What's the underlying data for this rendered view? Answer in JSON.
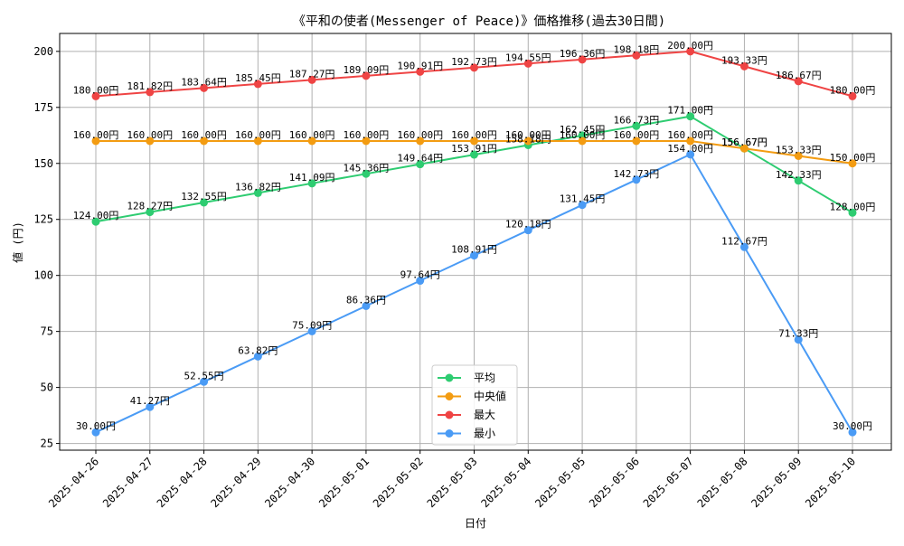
{
  "chart_data": {
    "type": "line",
    "title": "《平和の使者(Messenger of Peace)》価格推移(過去30日間)",
    "xlabel": "日付",
    "ylabel": "値 (円)",
    "ylim": [
      22,
      208
    ],
    "yticks": [
      25,
      50,
      75,
      100,
      125,
      150,
      175,
      200
    ],
    "grid": true,
    "legend_position": "bottom-center",
    "value_suffix": "円",
    "categories": [
      "2025-04-26",
      "2025-04-27",
      "2025-04-28",
      "2025-04-29",
      "2025-04-30",
      "2025-05-01",
      "2025-05-02",
      "2025-05-03",
      "2025-05-04",
      "2025-05-05",
      "2025-05-06",
      "2025-05-07",
      "2025-05-08",
      "2025-05-09",
      "2025-05-10"
    ],
    "series": [
      {
        "name": "平均",
        "color": "#2ecc71",
        "values": [
          124.0,
          128.27,
          132.55,
          136.82,
          141.09,
          145.36,
          149.64,
          153.91,
          158.18,
          162.45,
          166.73,
          171.0,
          156.67,
          142.33,
          128.0
        ]
      },
      {
        "name": "中央値",
        "color": "#f39c12",
        "values": [
          160.0,
          160.0,
          160.0,
          160.0,
          160.0,
          160.0,
          160.0,
          160.0,
          160.0,
          160.0,
          160.0,
          160.0,
          156.67,
          153.33,
          150.0
        ]
      },
      {
        "name": "最大",
        "color": "#ef4444",
        "values": [
          180.0,
          181.82,
          183.64,
          185.45,
          187.27,
          189.09,
          190.91,
          192.73,
          194.55,
          196.36,
          198.18,
          200.0,
          193.33,
          186.67,
          180.0
        ]
      },
      {
        "name": "最小",
        "color": "#4a9bf5",
        "values": [
          30.0,
          41.27,
          52.55,
          63.82,
          75.09,
          86.36,
          97.64,
          108.91,
          120.18,
          131.45,
          142.73,
          154.0,
          112.67,
          71.33,
          30.0
        ]
      }
    ]
  }
}
